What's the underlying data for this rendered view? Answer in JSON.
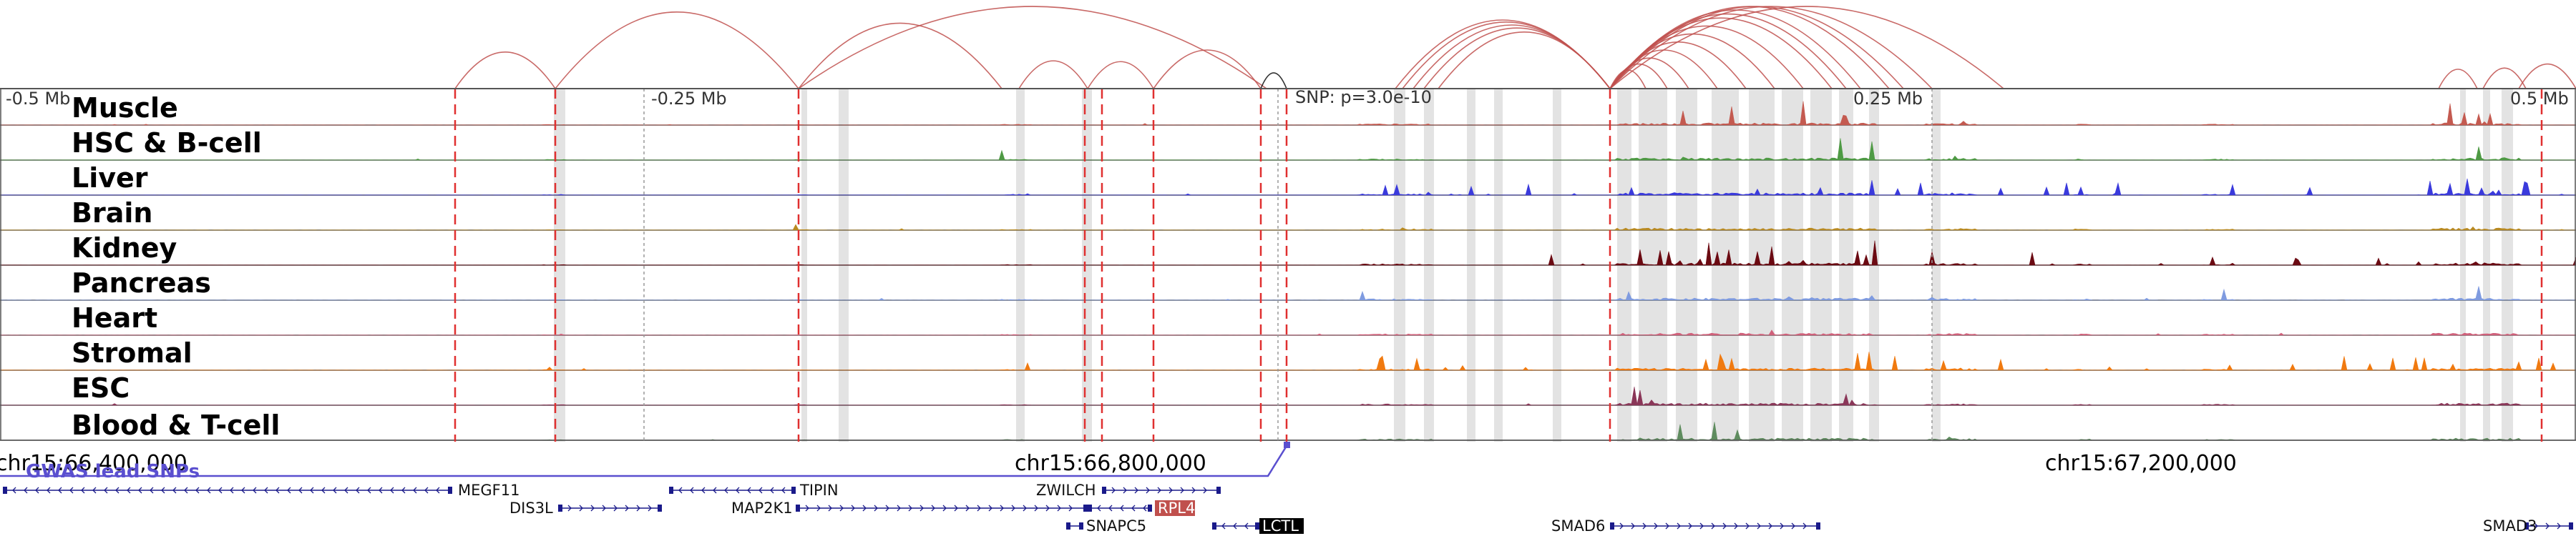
{
  "scale": {
    "left_label": "-0.5 Mb",
    "mid_label": "-0.25 Mb",
    "snp_label": "SNP: p=3.0e-10",
    "right_mid_label": "0.25 Mb",
    "right_label": "0.5 Mb"
  },
  "tracks": [
    {
      "label": "Muscle",
      "color": "#c45a50"
    },
    {
      "label": "HSC & B-cell",
      "color": "#4e9a44"
    },
    {
      "label": "Liver",
      "color": "#3a3adc"
    },
    {
      "label": "Brain",
      "color": "#b98a22"
    },
    {
      "label": "Kidney",
      "color": "#6b0a12"
    },
    {
      "label": "Pancreas",
      "color": "#7f9be0"
    },
    {
      "label": "Heart",
      "color": "#d0607a"
    },
    {
      "label": "Stromal",
      "color": "#f07a10"
    },
    {
      "label": "ESC",
      "color": "#8a3658"
    },
    {
      "label": "Blood & T-cell",
      "color": "#5e8c5e"
    }
  ],
  "coordinates": {
    "left": "chr15:66,400,000",
    "center": "chr15:66,800,000",
    "right": "chr15:67,200,000"
  },
  "gwas": {
    "label": "GWAS lead SNPs",
    "color": "#5a4fcf"
  },
  "genes": {
    "megf11": "MEGF11",
    "dis3l": "DIS3L",
    "tipin": "TIPIN",
    "map2k1": "MAP2K1",
    "zwilch": "ZWILCH",
    "rpl4": "RPL4",
    "snapc5": "SNAPC5",
    "lctl": "LCTL",
    "smad6": "SMAD6",
    "smad3": "SMAD3"
  },
  "colors": {
    "loop_arc": "#c0504d",
    "highlight_line": "#e03030",
    "gene_body": "#1a1a8a"
  }
}
